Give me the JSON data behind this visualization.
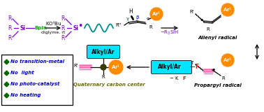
{
  "bg": "white",
  "cyan": "#00E5FF",
  "orange": "#FF8C00",
  "pink": "#FF69B4",
  "purple": "#7B00D4",
  "green_bpin": "#00AA00",
  "teal_wave": "#008B8B",
  "olive": "#6B6B00",
  "red": "#FF0000",
  "blue": "#0000CC",
  "dark_green": "#006400",
  "bullet_items": [
    "No transition-metal",
    "No  light",
    "No photo-catalyst",
    "No heating"
  ]
}
